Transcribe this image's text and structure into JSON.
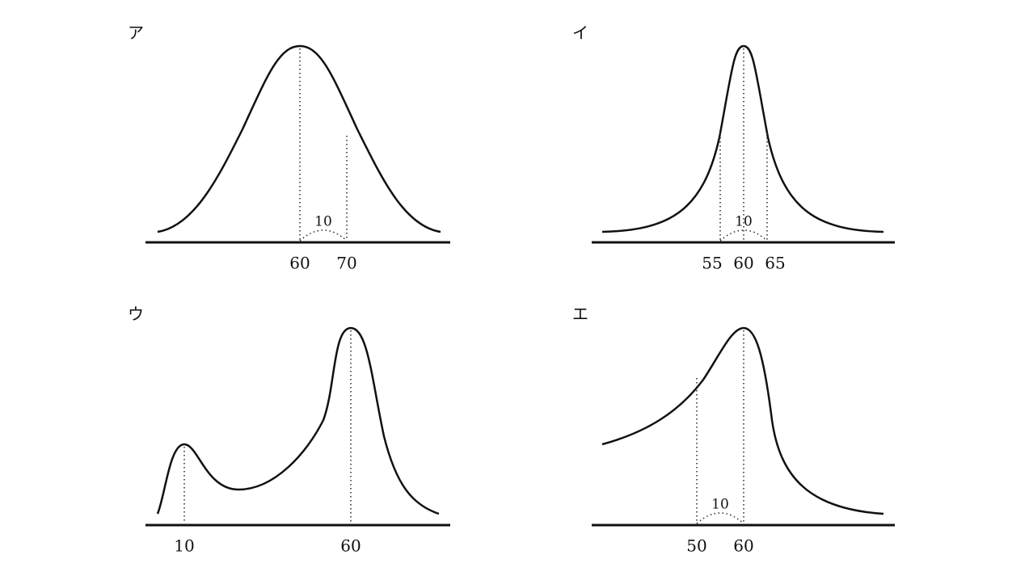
{
  "panels": [
    {
      "label": "ア",
      "ticks": [
        "60",
        "70"
      ],
      "span": "10"
    },
    {
      "label": "イ",
      "ticks": [
        "55",
        "60",
        "65"
      ],
      "span": "10"
    },
    {
      "label": "ウ",
      "ticks": [
        "10",
        "60"
      ]
    },
    {
      "label": "エ",
      "ticks": [
        "50",
        "60"
      ],
      "span": "10"
    }
  ]
}
